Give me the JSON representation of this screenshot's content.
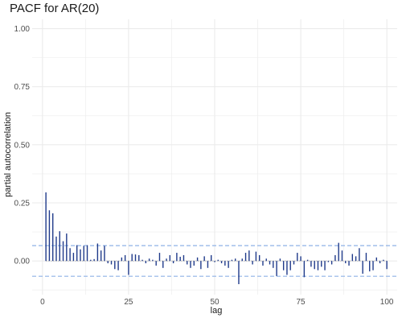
{
  "chart_data": {
    "type": "bar",
    "title": "PACF for AR(20)",
    "xlabel": "lag",
    "ylabel": "partial autocorrelation",
    "xlim": [
      -3,
      103
    ],
    "ylim": [
      -0.145,
      1.04
    ],
    "x_ticks": [
      0,
      25,
      50,
      75,
      100
    ],
    "y_ticks": [
      0.0,
      0.25,
      0.5,
      0.75,
      1.0
    ],
    "y_tick_labels": [
      "0.00",
      "0.25",
      "0.50",
      "0.75",
      "1.00"
    ],
    "grid": true,
    "confidence_band": [
      -0.066,
      0.066
    ],
    "series": [
      {
        "lags": [
          1,
          2,
          3,
          4,
          5,
          6,
          7,
          8,
          9,
          10,
          11,
          12,
          13,
          14,
          15,
          16,
          17,
          18,
          19,
          20,
          21,
          22,
          23,
          24,
          25,
          26,
          27,
          28,
          29,
          30,
          31,
          32,
          33,
          34,
          35,
          36,
          37,
          38,
          39,
          40,
          41,
          42,
          43,
          44,
          45,
          46,
          47,
          48,
          49,
          50,
          51,
          52,
          53,
          54,
          55,
          56,
          57,
          58,
          59,
          60,
          61,
          62,
          63,
          64,
          65,
          66,
          67,
          68,
          69,
          70,
          71,
          72,
          73,
          74,
          75,
          76,
          77,
          78,
          79,
          80,
          81,
          82,
          83,
          84,
          85,
          86,
          87,
          88,
          89,
          90,
          91,
          92,
          93,
          94,
          95,
          96,
          97,
          98,
          99,
          100
        ],
        "values": [
          0.295,
          0.218,
          0.205,
          0.105,
          0.128,
          0.085,
          0.118,
          0.055,
          0.035,
          0.068,
          0.05,
          0.065,
          0.068,
          0.005,
          0.008,
          0.075,
          0.045,
          0.065,
          -0.01,
          -0.015,
          -0.035,
          -0.04,
          0.015,
          0.025,
          -0.06,
          0.03,
          0.028,
          0.025,
          0.005,
          -0.01,
          0.01,
          0.005,
          -0.02,
          0.035,
          -0.03,
          0.01,
          0.025,
          -0.01,
          0.035,
          0.018,
          0.025,
          -0.015,
          -0.03,
          -0.02,
          0.015,
          -0.035,
          0.02,
          -0.03,
          0.025,
          -0.005,
          0.005,
          -0.01,
          -0.02,
          -0.03,
          0.005,
          0.01,
          -0.1,
          0.01,
          0.035,
          0.045,
          -0.015,
          0.04,
          0.025,
          -0.02,
          0.01,
          -0.015,
          -0.03,
          -0.065,
          0.01,
          -0.04,
          -0.06,
          -0.04,
          -0.015,
          0.035,
          0.02,
          -0.07,
          0.005,
          -0.025,
          -0.035,
          -0.04,
          -0.025,
          -0.04,
          -0.005,
          -0.015,
          0.025,
          0.078,
          0.045,
          -0.01,
          -0.02,
          0.03,
          0.02,
          0.055,
          -0.055,
          0.035,
          -0.045,
          -0.04,
          0.015,
          -0.01,
          0.005,
          -0.035
        ]
      }
    ],
    "colors": {
      "bar": "#1f3a8a",
      "band": "#8fb2e6",
      "grid": "#ebebeb",
      "zero_line": "#9a9a9a"
    }
  }
}
